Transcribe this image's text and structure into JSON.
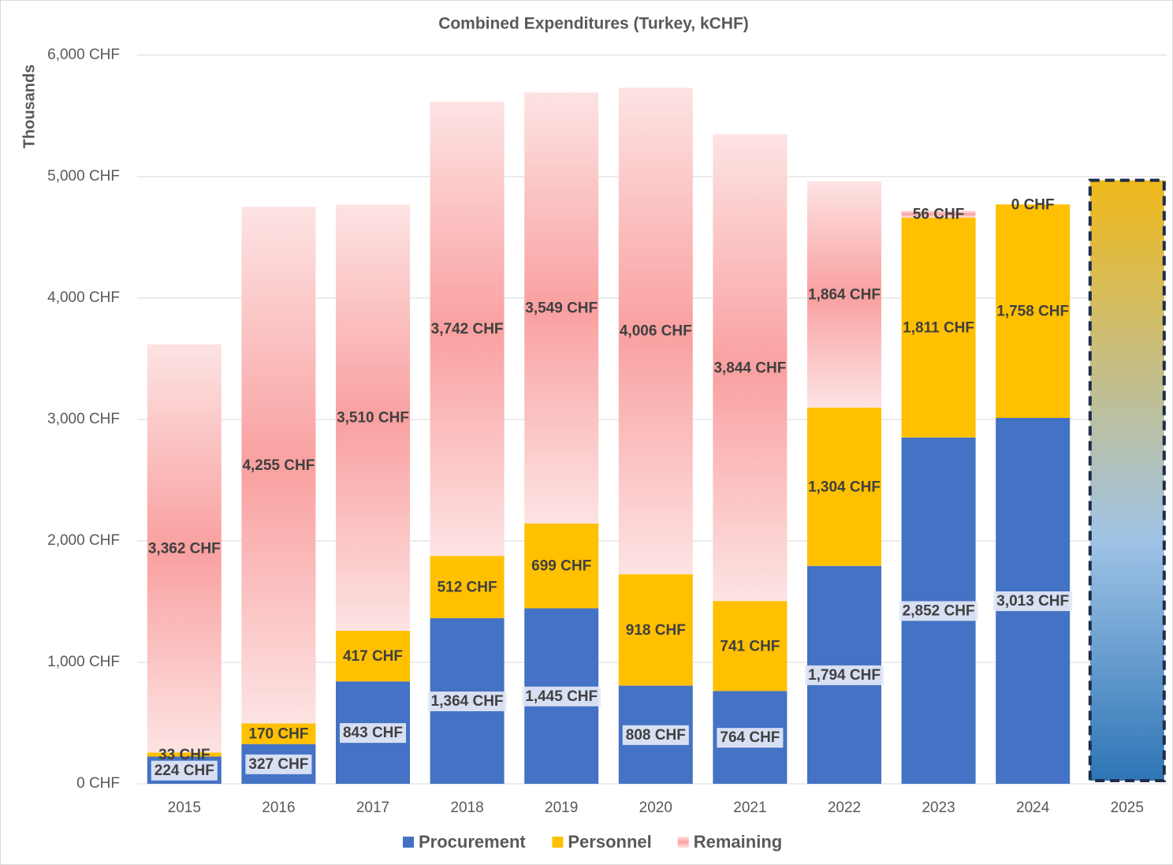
{
  "chart_data": {
    "type": "stacked_bar",
    "title": "Combined Expenditures (Turkey, kCHF)",
    "y_label": "Thousands",
    "categories": [
      "2015",
      "2016",
      "2017",
      "2018",
      "2019",
      "2020",
      "2021",
      "2022",
      "2023",
      "2024",
      "2025"
    ],
    "series": [
      {
        "name": "Procurement",
        "color": "#4472c4",
        "values": [
          224,
          327,
          843,
          1364,
          1445,
          808,
          764,
          1794,
          2852,
          3013,
          null
        ],
        "value_labels": [
          "224 CHF",
          "327 CHF",
          "843 CHF",
          "1,364 CHF",
          "1,445 CHF",
          "808 CHF",
          "764 CHF",
          "1,794 CHF",
          "2,852 CHF",
          "3,013 CHF",
          null
        ]
      },
      {
        "name": "Personnel",
        "color": "#ffc000",
        "values": [
          33,
          170,
          417,
          512,
          699,
          918,
          741,
          1304,
          1811,
          1758,
          null
        ],
        "value_labels": [
          "33 CHF",
          "170 CHF",
          "417 CHF",
          "512 CHF",
          "699 CHF",
          "918 CHF",
          "741 CHF",
          "1,304 CHF",
          "1,811 CHF",
          "1,758 CHF",
          null
        ]
      },
      {
        "name": "Remaining",
        "color": "#f9a0a0",
        "values": [
          3362,
          4255,
          3510,
          3742,
          3549,
          4006,
          3844,
          1864,
          56,
          0,
          null
        ],
        "value_labels": [
          "3,362 CHF",
          "4,255 CHF",
          "3,510 CHF",
          "3,742 CHF",
          "3,549 CHF",
          "4,006 CHF",
          "3,844 CHF",
          "1,864 CHF",
          "56 CHF",
          "0 CHF",
          null
        ]
      }
    ],
    "forecast": {
      "index": 10,
      "value": 4970,
      "colors": [
        "#f0b91a",
        "#9fc3e6",
        "#2e75b6"
      ]
    },
    "ylim": [
      0,
      6000
    ],
    "yticks": [
      {
        "value": 0,
        "label": "0 CHF"
      },
      {
        "value": 1000,
        "label": "1,000 CHF"
      },
      {
        "value": 2000,
        "label": "2,000 CHF"
      },
      {
        "value": 3000,
        "label": "3,000 CHF"
      },
      {
        "value": 4000,
        "label": "4,000 CHF"
      },
      {
        "value": 5000,
        "label": "5,000 CHF"
      },
      {
        "value": 6000,
        "label": "6,000 CHF"
      }
    ],
    "grid": true,
    "legend": "bottom"
  }
}
